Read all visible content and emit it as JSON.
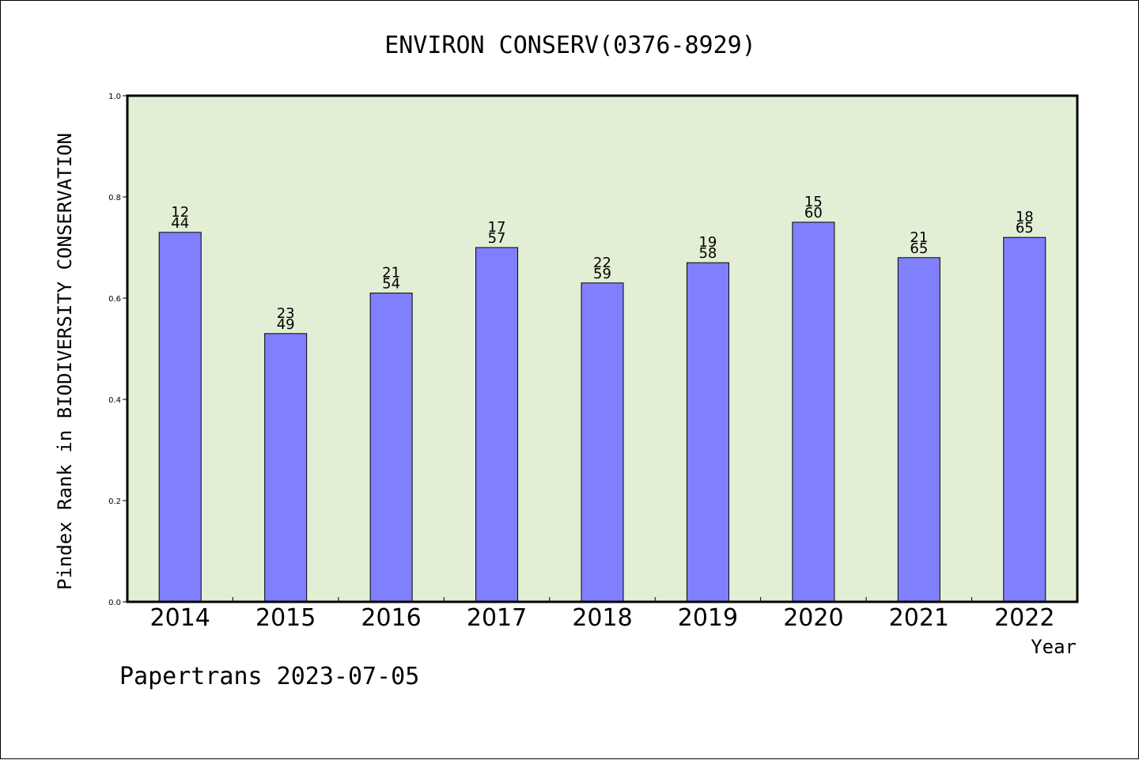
{
  "chart_data": {
    "type": "bar",
    "title": "ENVIRON CONSERV(0376-8929)",
    "xlabel": "Year",
    "ylabel": "Pindex Rank in BIODIVERSITY CONSERVATION",
    "ylim": [
      0,
      1.0
    ],
    "yticks": [
      "0.0",
      "0.2",
      "0.4",
      "0.6",
      "0.8",
      "1.0"
    ],
    "categories": [
      "2014",
      "2015",
      "2016",
      "2017",
      "2018",
      "2019",
      "2020",
      "2021",
      "2022"
    ],
    "values": [
      0.73,
      0.53,
      0.61,
      0.7,
      0.63,
      0.67,
      0.75,
      0.68,
      0.72
    ],
    "label_top": [
      "12",
      "23",
      "21",
      "17",
      "22",
      "19",
      "15",
      "21",
      "18"
    ],
    "label_bottom": [
      "44",
      "49",
      "54",
      "57",
      "59",
      "58",
      "60",
      "65",
      "65"
    ],
    "grid": false,
    "legend": "none",
    "colors": {
      "bar": "#8080ff",
      "plot_background": "#e2efd5",
      "axis": "#000000"
    }
  },
  "footer": {
    "text": "Papertrans 2023-07-05"
  }
}
